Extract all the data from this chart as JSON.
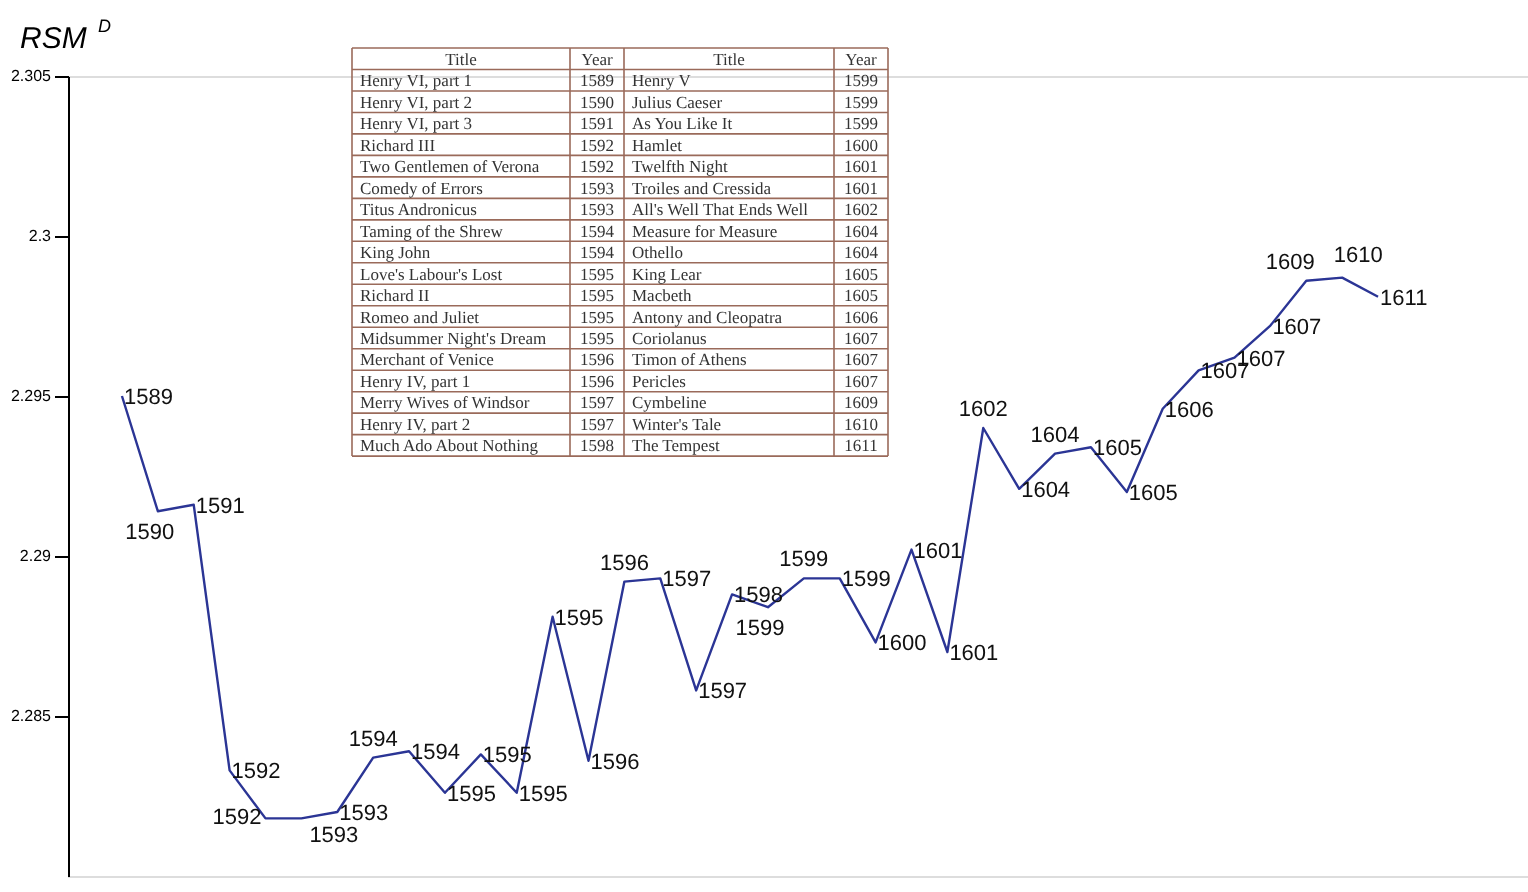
{
  "chart_data": {
    "type": "line",
    "ylabel": "RSM$^{D}$",
    "categories": [
      null,
      null,
      null,
      null,
      null,
      null,
      null,
      null,
      null,
      null,
      null,
      null,
      null,
      null,
      null,
      null,
      null,
      null,
      null,
      null,
      null,
      null,
      null,
      null,
      null,
      null,
      null,
      null,
      null,
      null,
      null,
      null,
      null,
      null,
      null,
      null
    ],
    "series": [
      {
        "color": "#2b3595",
        "values": [
          2.295,
          2.2914,
          2.2916,
          2.2833,
          2.2818,
          2.2818,
          2.282,
          2.2837,
          2.2839,
          2.2826,
          2.2838,
          2.2826,
          2.2881,
          2.2836,
          2.2892,
          2.2893,
          2.2858,
          2.2888,
          2.2884,
          2.2893,
          2.2893,
          2.2873,
          2.2902,
          2.287,
          2.294,
          2.2921,
          2.2932,
          2.2934,
          2.292,
          2.2946,
          2.2958,
          2.2962,
          2.2972,
          2.2986,
          2.2987,
          2.2981
        ]
      }
    ],
    "ylim": [
      2.28,
      2.305
    ],
    "yticks": [
      2.285,
      2.29,
      2.295,
      2.3,
      2.305
    ],
    "tick_labels": "y",
    "grid": false,
    "annotations": [
      "1589",
      "1590",
      "1591",
      "1592",
      "1592",
      "1593",
      "1593",
      "1594",
      "1594",
      "1595",
      "1595",
      "1595",
      "1595",
      "1596",
      "1596",
      "1597",
      "1597",
      "1598",
      "1599",
      "1599",
      "1599",
      "1600",
      "1601",
      "1601",
      "1602",
      "1604",
      "1604",
      "1605",
      "1605",
      "1606",
      "1607",
      "1607",
      "1607",
      "1609",
      "1610",
      "1611",
      "Title",
      "Year",
      "Title",
      "Year",
      "Henry VI, part 1",
      "1589",
      "Henry V",
      "1599",
      "Henry VI, part 2",
      "1590",
      "Julius Caeser",
      "1599",
      "Henry VI, part 3",
      "1591",
      "As You Like It",
      "1599",
      "Richard III",
      "1592",
      "Hamlet",
      "1600",
      "Two Gentlemen of Verona",
      "1592",
      "Twelfth Night",
      "1601",
      "Comedy of Errors",
      "1593",
      "Troiles and Cressida",
      "1601",
      "Titus Andronicus",
      "1593",
      "All's Well That Ends Well",
      "1602",
      "Taming of the Shrew",
      "1594",
      "Measure for Measure",
      "1604",
      "King John",
      "1594",
      "Othello",
      "1604",
      "Love's Labour's Lost",
      "1595",
      "King Lear",
      "1605",
      "Richard II",
      "1595",
      "Macbeth",
      "1605",
      "Romeo and Juliet",
      "1595",
      "Antony and Cleopatra",
      "1606",
      "Midsummer Night's Dream",
      "1595",
      "Coriolanus",
      "1607",
      "Merchant of Venice",
      "1596",
      "Timon of Athens",
      "1607",
      "Henry IV, part 1",
      "1596",
      "Pericles",
      "1607",
      "Merry Wives of Windsor",
      "1597",
      "Cymbeline",
      "1609",
      "Henry IV, part 2",
      "1597",
      "Winter's Tale",
      "1610",
      "Much Ado About Nothing",
      "1598",
      "The Tempest",
      "1611"
    ]
  }
}
